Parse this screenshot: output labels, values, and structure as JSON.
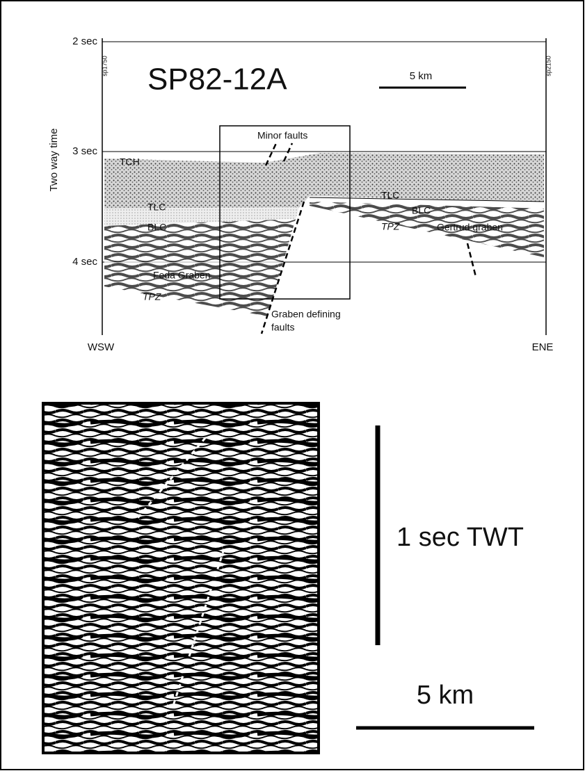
{
  "top_section": {
    "title": "SP82-12A",
    "scale_label": "5 km",
    "time_labels": [
      "2 sec",
      "3 sec",
      "4 sec"
    ],
    "axis_title": "Two way time",
    "shotpoints": [
      "sp1750",
      "sp2150"
    ],
    "annotations": {
      "minor": "Minor faults",
      "graben": [
        "Graben defining",
        "faults"
      ]
    },
    "layers": {
      "tch": "TCH",
      "tlc_left": "TLC",
      "blc_left": "BLC",
      "tpz_left": "TPZ",
      "feda": "Feda Graben",
      "tlc_right": "TLC",
      "blc_right": "BLC",
      "tpz_right": "TPZ",
      "gertrud": "Gertrud graben"
    },
    "directions": [
      "WSW",
      "ENE"
    ]
  },
  "bottom_section": {
    "vertical_scale": "1 sec TWT",
    "horizontal_scale": "5 km"
  }
}
